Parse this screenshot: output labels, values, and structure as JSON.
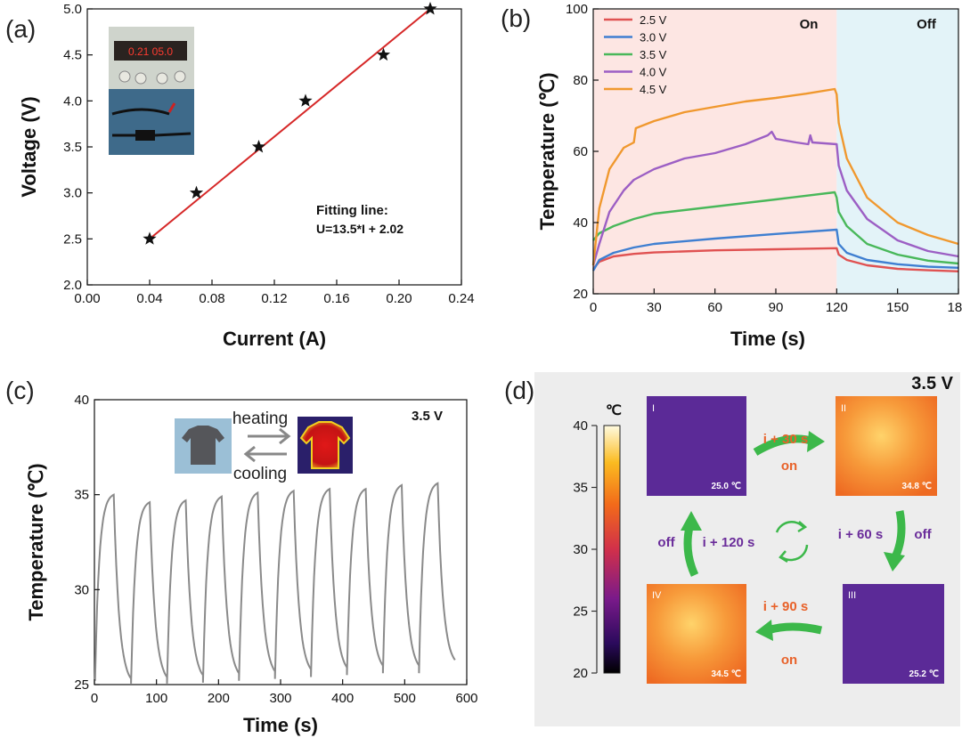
{
  "panels": {
    "a": "(a)",
    "b": "(b)",
    "c": "(c)",
    "d": "(d)"
  },
  "chart_data": [
    {
      "type": "scatter",
      "panel": "(a)",
      "xlabel": "Current (A)",
      "ylabel": "Voltage (V)",
      "xlim": [
        0.0,
        0.24
      ],
      "ylim": [
        2.0,
        5.0
      ],
      "xticks": [
        "0.00",
        "0.04",
        "0.08",
        "0.12",
        "0.16",
        "0.20",
        "0.24"
      ],
      "yticks": [
        "2.0",
        "2.5",
        "3.0",
        "3.5",
        "4.0",
        "4.5",
        "5.0"
      ],
      "points": [
        {
          "x": 0.04,
          "y": 2.5
        },
        {
          "x": 0.07,
          "y": 3.0
        },
        {
          "x": 0.11,
          "y": 3.5
        },
        {
          "x": 0.14,
          "y": 4.0
        },
        {
          "x": 0.19,
          "y": 4.5
        },
        {
          "x": 0.22,
          "y": 5.0
        }
      ],
      "fit_line": {
        "x": [
          0.04,
          0.22
        ],
        "y": [
          2.5,
          5.0
        ],
        "color": "#d62828"
      },
      "annotation": [
        "Fitting line:",
        "U=13.5*I + 2.02"
      ],
      "inset_display": "0.21 05.0"
    },
    {
      "type": "line",
      "panel": "(b)",
      "xlabel": "Time (s)",
      "ylabel": "Temperature (℃)",
      "xlim": [
        0,
        180
      ],
      "ylim": [
        20,
        100
      ],
      "xticks": [
        "0",
        "30",
        "60",
        "90",
        "120",
        "150",
        "180"
      ],
      "yticks": [
        "20",
        "40",
        "60",
        "80",
        "100"
      ],
      "regions": [
        {
          "label": "On",
          "x": [
            0,
            120
          ],
          "color": "#fde6e3"
        },
        {
          "label": "Off",
          "x": [
            120,
            180
          ],
          "color": "#e3f3f8"
        }
      ],
      "legend_position": "top-left",
      "series": [
        {
          "name": "2.5 V",
          "color": "#e05252",
          "x": [
            0,
            3,
            10,
            20,
            30,
            60,
            90,
            120,
            121,
            125,
            135,
            150,
            165,
            180
          ],
          "y": [
            27,
            29,
            30.5,
            31.2,
            31.6,
            32.2,
            32.5,
            32.8,
            31,
            29.5,
            28,
            27,
            26.6,
            26.3
          ]
        },
        {
          "name": "3.0 V",
          "color": "#3f7fd1",
          "x": [
            0,
            3,
            10,
            20,
            30,
            60,
            90,
            120,
            121,
            125,
            135,
            150,
            165,
            180
          ],
          "y": [
            26.5,
            29.5,
            31.5,
            33,
            34,
            35.5,
            36.8,
            38,
            34,
            31.5,
            29.5,
            28.3,
            27.6,
            27.3
          ]
        },
        {
          "name": "3.5 V",
          "color": "#49b85a",
          "x": [
            0,
            3,
            10,
            20,
            30,
            60,
            90,
            119,
            120,
            121,
            125,
            135,
            150,
            165,
            180
          ],
          "y": [
            35,
            37,
            39,
            41,
            42.5,
            44.5,
            46.5,
            48.5,
            47,
            43,
            39,
            34,
            31,
            29.3,
            28.5
          ]
        },
        {
          "name": "4.0 V",
          "color": "#9c5fc4",
          "x": [
            0,
            3,
            8,
            15,
            20,
            30,
            45,
            60,
            75,
            86,
            88,
            90,
            100,
            106,
            107,
            108,
            120,
            121,
            125,
            135,
            150,
            165,
            180
          ],
          "y": [
            28,
            34,
            43,
            49,
            52,
            55,
            58,
            59.5,
            62,
            64.5,
            65.5,
            63.5,
            62.5,
            62,
            64.5,
            62.5,
            62,
            56,
            49,
            41,
            35,
            32,
            30.5
          ]
        },
        {
          "name": "4.5 V",
          "color": "#f0982e",
          "x": [
            0,
            3,
            8,
            15,
            20,
            21,
            30,
            45,
            60,
            75,
            90,
            105,
            119,
            120,
            121,
            125,
            135,
            150,
            165,
            180
          ],
          "y": [
            28,
            44,
            55,
            61,
            62.5,
            66.5,
            68.5,
            71,
            72.5,
            74,
            75,
            76.2,
            77.5,
            76,
            68,
            58,
            47,
            40,
            36.5,
            34
          ]
        }
      ]
    },
    {
      "type": "line",
      "panel": "(c)",
      "xlabel": "Time (s)",
      "ylabel": "Temperature (℃)",
      "xlim": [
        0,
        600
      ],
      "ylim": [
        25,
        40
      ],
      "xticks": [
        "0",
        "100",
        "200",
        "300",
        "400",
        "500",
        "600"
      ],
      "yticks": [
        "25",
        "30",
        "35",
        "40"
      ],
      "annotation": "3.5 V",
      "inset_labels": [
        "heating",
        "cooling"
      ],
      "series": [
        {
          "name": "",
          "color": "#8a8a8a",
          "peaks": [
            35.0,
            34.6,
            34.7,
            34.9,
            35.1,
            35.2,
            35.3,
            35.3,
            35.5,
            35.6
          ],
          "troughs": [
            24.9,
            25.0,
            25.1,
            25.2,
            25.3,
            25.4,
            25.5,
            25.6,
            25.6,
            25.9
          ],
          "period": 58,
          "start_time": 0
        }
      ]
    }
  ],
  "panel_d": {
    "voltage": "3.5 V",
    "colorbar": {
      "unit": "℃",
      "ticks": [
        "40",
        "35",
        "30",
        "25",
        "20"
      ],
      "range": [
        20,
        40
      ]
    },
    "images": [
      {
        "roman": "I",
        "temp": "25.0 ℃",
        "state": "cool"
      },
      {
        "roman": "II",
        "temp": "34.8 ℃",
        "state": "hot"
      },
      {
        "roman": "III",
        "temp": "25.2 ℃",
        "state": "cool"
      },
      {
        "roman": "IV",
        "temp": "34.5 ℃",
        "state": "hot"
      }
    ],
    "steps": [
      {
        "time": "i + 30 s",
        "state": "on"
      },
      {
        "time": "i + 60 s",
        "state": "off"
      },
      {
        "time": "i + 90 s",
        "state": "on"
      },
      {
        "time": "i + 120 s",
        "state": "off"
      }
    ],
    "colors": {
      "on": "#e8622a",
      "off": "#6a2c9a",
      "arrow": "#3cb84a"
    }
  }
}
